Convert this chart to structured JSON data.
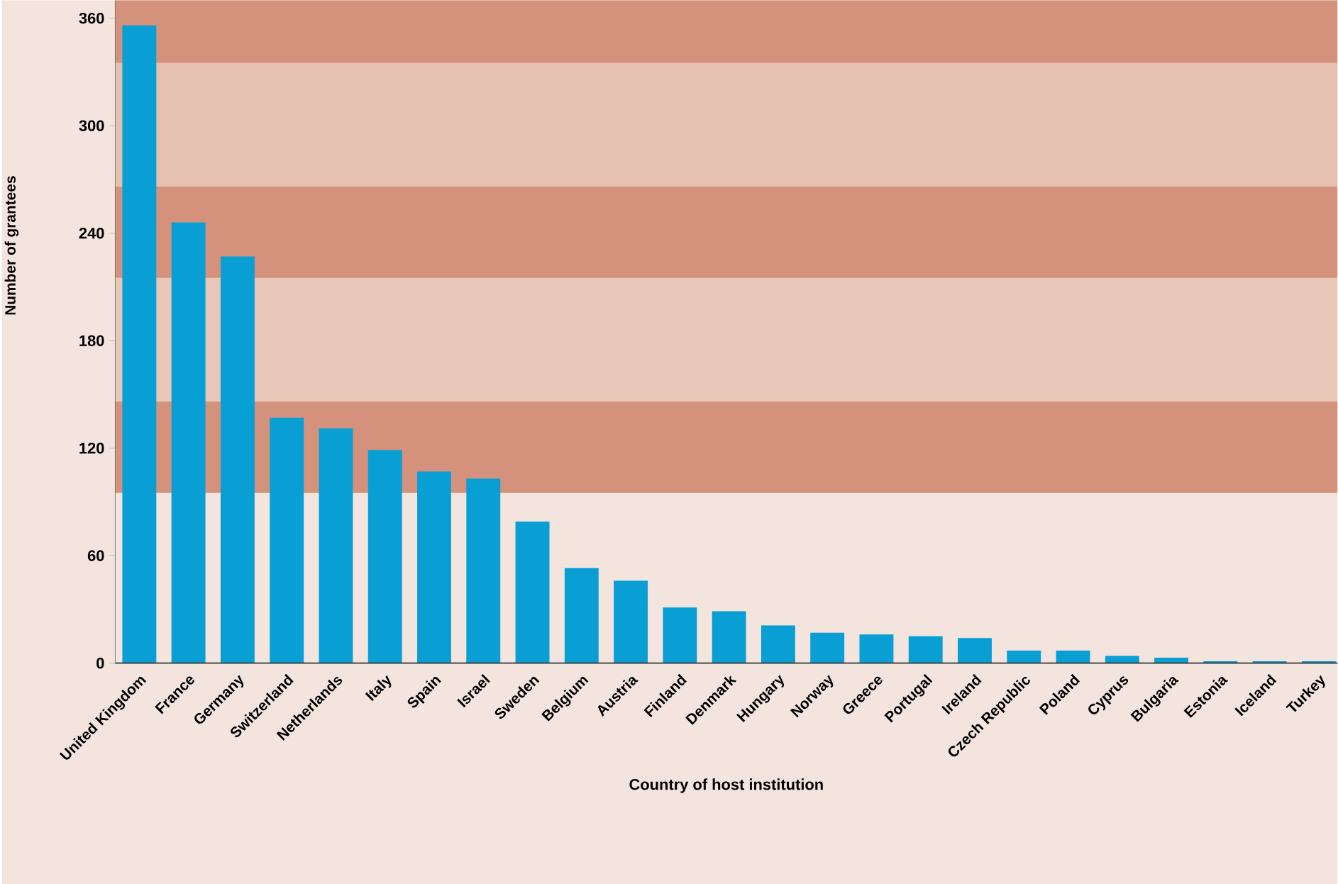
{
  "chart_data": {
    "type": "bar",
    "xlabel": "Country of host institution",
    "ylabel": "Number of grantees",
    "categories": [
      "United Kingdom",
      "France",
      "Germany",
      "Switzerland",
      "Netherlands",
      "Italy",
      "Spain",
      "Israel",
      "Sweden",
      "Belgium",
      "Austria",
      "Finland",
      "Denmark",
      "Hungary",
      "Norway",
      "Greece",
      "Portugal",
      "Ireland",
      "Czech Republic",
      "Poland",
      "Cyprus",
      "Bulgaria",
      "Estonia",
      "Iceland",
      "Turkey"
    ],
    "values": [
      356,
      246,
      227,
      137,
      131,
      119,
      107,
      103,
      79,
      53,
      46,
      31,
      29,
      21,
      17,
      16,
      15,
      14,
      7,
      7,
      4,
      3,
      1,
      1,
      1
    ],
    "color": "#0a9fd4",
    "ylim": [
      0,
      370
    ],
    "yticks": [
      0,
      60,
      120,
      180,
      240,
      300,
      360
    ],
    "bands": [
      {
        "axis": "y",
        "from": 95,
        "to": 146,
        "color": "#d4927c"
      },
      {
        "axis": "y",
        "from": 146,
        "to": 215,
        "color": "#e8c7b9"
      },
      {
        "axis": "y",
        "from": 215,
        "to": 266,
        "color": "#d4927c"
      },
      {
        "axis": "y",
        "from": 266,
        "to": 335,
        "color": "#e6c1b2"
      },
      {
        "axis": "y",
        "from": 335,
        "to": 370,
        "color": "#d4927c"
      }
    ]
  }
}
